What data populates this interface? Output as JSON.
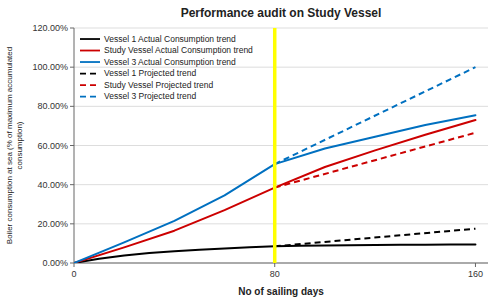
{
  "chart_data": {
    "type": "line",
    "title": "Performance audit on Study Vessel",
    "xlabel": "No of sailing days",
    "ylabel": "Boiler consumption at sea (% of maximum accumulated\nconsumption)",
    "xlim": [
      0,
      165
    ],
    "ylim": [
      0,
      1.2
    ],
    "xticks": [
      0,
      80,
      160
    ],
    "yticks": [
      {
        "value": 0.0,
        "label": "0.00%"
      },
      {
        "value": 0.2,
        "label": "20.00%"
      },
      {
        "value": 0.4,
        "label": "40.00%"
      },
      {
        "value": 0.6,
        "label": "60.00%"
      },
      {
        "value": 0.8,
        "label": "80.00%"
      },
      {
        "value": 1.0,
        "label": "100.00%"
      },
      {
        "value": 1.2,
        "label": "120.00%"
      }
    ],
    "grid": true,
    "legend": "upper left",
    "reference_lines": [
      {
        "x": 80,
        "color": "#ffff00"
      }
    ],
    "series": [
      {
        "name": "Vessel 1 Actual Consumption trend",
        "color": "#000000",
        "line_style": "solid",
        "x": [
          0,
          10,
          20,
          30,
          40,
          50,
          60,
          70,
          80,
          90,
          100,
          110,
          120,
          130,
          140,
          150,
          160
        ],
        "values": [
          0.0,
          0.022,
          0.038,
          0.051,
          0.06,
          0.068,
          0.074,
          0.08,
          0.085,
          0.088,
          0.09,
          0.091,
          0.092,
          0.093,
          0.093,
          0.094,
          0.095
        ]
      },
      {
        "name": "Study Vessel Actual Consumption trend",
        "color": "#cc0000",
        "line_style": "solid",
        "x": [
          0,
          20,
          40,
          60,
          80,
          100,
          120,
          140,
          160
        ],
        "values": [
          0.0,
          0.08,
          0.165,
          0.27,
          0.385,
          0.49,
          0.575,
          0.655,
          0.73
        ]
      },
      {
        "name": "Vessel 3 Actual Consumption trend",
        "color": "#0070c0",
        "line_style": "solid",
        "x": [
          0,
          20,
          40,
          60,
          80,
          100,
          120,
          140,
          160
        ],
        "values": [
          0.0,
          0.105,
          0.215,
          0.345,
          0.505,
          0.585,
          0.645,
          0.705,
          0.755
        ]
      },
      {
        "name": "Vessel 1 Projected trend",
        "color": "#000000",
        "line_style": "dashed",
        "x": [
          80,
          160
        ],
        "values": [
          0.085,
          0.175
        ]
      },
      {
        "name": "Study Vessel Projected trend",
        "color": "#cc0000",
        "line_style": "dashed",
        "x": [
          80,
          160
        ],
        "values": [
          0.385,
          0.665
        ]
      },
      {
        "name": "Vessel 3 Projected trend",
        "color": "#0070c0",
        "line_style": "dashed",
        "x": [
          80,
          160
        ],
        "values": [
          0.505,
          1.0
        ]
      }
    ]
  }
}
